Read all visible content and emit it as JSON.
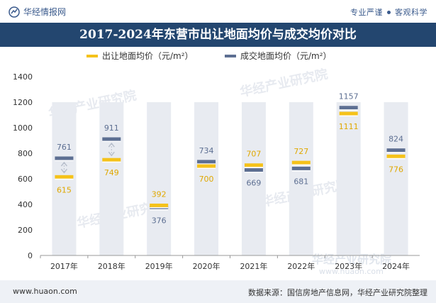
{
  "header": {
    "brand": "华经情报网",
    "slogan_left": "专业严谨",
    "slogan_right": "客观科学"
  },
  "colors": {
    "title_bg": "#23466f",
    "land_price": "#f5c21a",
    "deal_price": "#5d6f92",
    "column_bg": "#e8ebf1"
  },
  "chart_data": {
    "type": "bar",
    "title": "2017-2024年东营市出让地面均价与成交均价对比",
    "categories": [
      "2017年",
      "2018年",
      "2019年",
      "2020年",
      "2021年",
      "2022年",
      "2023年",
      "2024年"
    ],
    "series": [
      {
        "name": "出让地面均价（元/m²）",
        "values": [
          615,
          749,
          392,
          700,
          707,
          727,
          1111,
          776
        ]
      },
      {
        "name": "成交地面均价（元/m²）",
        "values": [
          761,
          911,
          376,
          734,
          669,
          681,
          1157,
          824
        ]
      }
    ],
    "ylim": [
      0,
      1400
    ],
    "yticks": [
      0,
      200,
      400,
      600,
      800,
      1000,
      1200,
      1400
    ],
    "legend_position": "top-center"
  },
  "watermark": "华经产业研究院",
  "watermark_url": "www.huaon.com",
  "footer": {
    "website": "www.huaon.com",
    "source": "数据来源：国信房地产信息网，华经产业研究院整理"
  }
}
